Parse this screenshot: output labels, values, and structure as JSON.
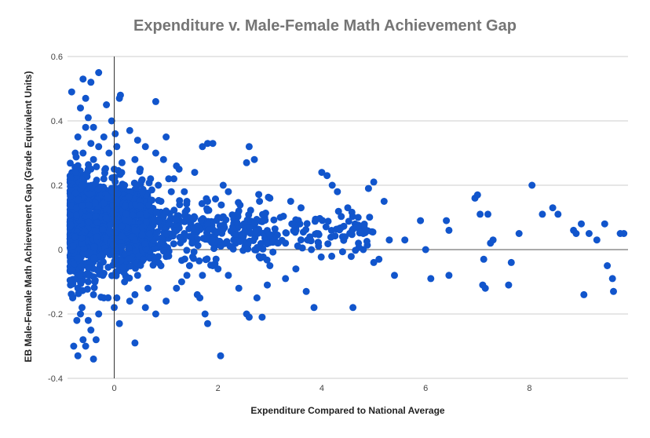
{
  "chart_data": {
    "type": "scatter",
    "title": "Expenditure v. Male-Female Math Achievement Gap",
    "xlabel": "Expenditure Compared to National Average",
    "ylabel": "EB Male-Female Math Achievement Gap (Grade Equivalent Units)",
    "xlim": [
      -0.9,
      9.9
    ],
    "ylim": [
      -0.4,
      0.6
    ],
    "x_ticks": [
      0,
      2,
      4,
      6,
      8
    ],
    "y_ticks": [
      -0.4,
      -0.2,
      0,
      0.2,
      0.4,
      0.6
    ],
    "x_tick_labels": [
      "0",
      "2",
      "4",
      "6",
      "8"
    ],
    "y_tick_labels": [
      "-0.4",
      "-0.2",
      "0",
      "0.2",
      "0.4",
      "0.6"
    ],
    "grid": "horizontal",
    "marker_color": "#1155cc",
    "series": [
      {
        "points": [
          [
            -0.85,
            0.21
          ],
          [
            -0.8,
            0.1
          ],
          [
            -0.78,
            -0.05
          ],
          [
            -0.75,
            0.3
          ],
          [
            -0.72,
            0.18
          ],
          [
            -0.7,
            -0.12
          ],
          [
            -0.68,
            0.05
          ],
          [
            -0.82,
            0.49
          ],
          [
            -0.6,
            0.53
          ],
          [
            -0.55,
            0.47
          ],
          [
            -0.45,
            0.52
          ],
          [
            -0.3,
            0.55
          ],
          [
            -0.5,
            0.41
          ],
          [
            -0.65,
            0.44
          ],
          [
            -0.4,
            0.38
          ],
          [
            -0.2,
            0.35
          ],
          [
            -0.15,
            0.45
          ],
          [
            -0.05,
            0.4
          ],
          [
            0.12,
            0.48
          ],
          [
            0.1,
            0.47
          ],
          [
            0.02,
            0.36
          ],
          [
            -0.6,
            -0.28
          ],
          [
            -0.7,
            -0.33
          ],
          [
            -0.55,
            -0.3
          ],
          [
            -0.4,
            -0.34
          ],
          [
            -0.45,
            -0.25
          ],
          [
            -0.5,
            -0.22
          ],
          [
            -0.65,
            -0.2
          ],
          [
            -0.78,
            -0.3
          ],
          [
            -0.35,
            -0.28
          ],
          [
            -0.3,
            -0.2
          ],
          [
            -0.2,
            -0.15
          ],
          [
            0.0,
            -0.18
          ],
          [
            0.1,
            -0.23
          ],
          [
            0.05,
            -0.15
          ],
          [
            0.4,
            -0.29
          ],
          [
            0.3,
            -0.16
          ],
          [
            0.2,
            -0.1
          ],
          [
            -0.6,
            0.3
          ],
          [
            -0.5,
            0.25
          ],
          [
            -0.4,
            0.28
          ],
          [
            -0.3,
            0.32
          ],
          [
            -0.2,
            0.22
          ],
          [
            -0.1,
            0.3
          ],
          [
            0.0,
            0.25
          ],
          [
            0.05,
            0.32
          ],
          [
            -0.75,
            0.12
          ],
          [
            -0.6,
            0.15
          ],
          [
            -0.5,
            0.08
          ],
          [
            -0.4,
            0.02
          ],
          [
            -0.3,
            -0.02
          ],
          [
            -0.2,
            0.05
          ],
          [
            -0.1,
            0.12
          ],
          [
            -0.6,
            -0.08
          ],
          [
            -0.5,
            -0.1
          ],
          [
            -0.4,
            -0.14
          ],
          [
            -0.7,
            0.35
          ],
          [
            -0.55,
            0.38
          ],
          [
            -0.45,
            0.33
          ],
          [
            -0.35,
            0.2
          ],
          [
            -0.25,
            0.15
          ],
          [
            -0.15,
            0.08
          ],
          [
            -0.05,
            0.18
          ],
          [
            -0.8,
            -0.15
          ],
          [
            -0.72,
            -0.22
          ],
          [
            -0.62,
            -0.18
          ],
          [
            -0.52,
            -0.05
          ],
          [
            -0.42,
            0.0
          ],
          [
            -0.32,
            0.1
          ],
          [
            -0.22,
            -0.08
          ],
          [
            0.2,
            0.2
          ],
          [
            0.3,
            0.15
          ],
          [
            0.4,
            0.28
          ],
          [
            0.5,
            0.1
          ],
          [
            0.6,
            0.05
          ],
          [
            0.7,
            0.22
          ],
          [
            0.8,
            0.3
          ],
          [
            0.9,
            -0.05
          ],
          [
            1.0,
            0.12
          ],
          [
            1.1,
            0.18
          ],
          [
            1.2,
            0.08
          ],
          [
            1.3,
            -0.1
          ],
          [
            1.4,
            0.15
          ],
          [
            1.5,
            0.02
          ],
          [
            0.25,
            -0.05
          ],
          [
            0.35,
            0.05
          ],
          [
            0.45,
            -0.08
          ],
          [
            0.55,
            0.18
          ],
          [
            0.65,
            -0.12
          ],
          [
            0.75,
            0.1
          ],
          [
            0.85,
            0.2
          ],
          [
            0.95,
            0.28
          ],
          [
            1.05,
            -0.02
          ],
          [
            1.15,
            0.22
          ],
          [
            1.25,
            0.25
          ],
          [
            1.35,
            0.05
          ],
          [
            1.45,
            -0.05
          ],
          [
            1.55,
            0.1
          ],
          [
            0.3,
            0.37
          ],
          [
            0.45,
            0.34
          ],
          [
            0.6,
            0.32
          ],
          [
            0.8,
            0.46
          ],
          [
            1.0,
            0.35
          ],
          [
            1.6,
            0.06
          ],
          [
            1.7,
            -0.08
          ],
          [
            0.4,
            -0.14
          ],
          [
            0.6,
            -0.18
          ],
          [
            0.8,
            -0.2
          ],
          [
            1.0,
            -0.16
          ],
          [
            1.2,
            -0.12
          ],
          [
            1.4,
            -0.08
          ],
          [
            1.6,
            -0.14
          ],
          [
            1.8,
            0.15
          ],
          [
            1.9,
            -0.05
          ],
          [
            2.0,
            0.1
          ],
          [
            2.1,
            0.2
          ],
          [
            2.2,
            -0.08
          ],
          [
            2.3,
            0.05
          ],
          [
            2.4,
            0.12
          ],
          [
            1.7,
            0.32
          ],
          [
            1.8,
            0.33
          ],
          [
            1.9,
            0.33
          ],
          [
            1.75,
            -0.2
          ],
          [
            1.8,
            -0.23
          ],
          [
            2.05,
            -0.33
          ],
          [
            2.5,
            0.08
          ],
          [
            2.6,
            0.32
          ],
          [
            2.7,
            0.28
          ],
          [
            2.55,
            0.27
          ],
          [
            2.55,
            -0.2
          ],
          [
            2.6,
            -0.21
          ],
          [
            2.85,
            -0.21
          ],
          [
            2.8,
            0.15
          ],
          [
            2.9,
            0.1
          ],
          [
            3.0,
            -0.05
          ],
          [
            3.1,
            0.05
          ],
          [
            3.2,
            0.1
          ],
          [
            3.3,
            0.02
          ],
          [
            3.4,
            0.15
          ],
          [
            3.5,
            0.07
          ],
          [
            3.6,
            0.13
          ],
          [
            3.7,
            -0.13
          ],
          [
            3.8,
            0.0
          ],
          [
            3.9,
            0.05
          ],
          [
            4.0,
            0.24
          ],
          [
            4.1,
            0.23
          ],
          [
            4.2,
            0.2
          ],
          [
            4.3,
            0.18
          ],
          [
            4.4,
            0.04
          ],
          [
            4.5,
            0.13
          ],
          [
            4.6,
            -0.18
          ],
          [
            4.7,
            0.1
          ],
          [
            4.8,
            0.0
          ],
          [
            4.9,
            0.19
          ],
          [
            5.0,
            0.21
          ],
          [
            5.1,
            -0.03
          ],
          [
            5.2,
            0.15
          ],
          [
            5.3,
            0.03
          ],
          [
            5.4,
            -0.08
          ],
          [
            5.6,
            0.03
          ],
          [
            5.9,
            0.09
          ],
          [
            6.0,
            0.0
          ],
          [
            6.1,
            -0.09
          ],
          [
            6.4,
            0.09
          ],
          [
            6.45,
            -0.08
          ],
          [
            6.95,
            0.16
          ],
          [
            7.0,
            0.17
          ],
          [
            7.05,
            0.11
          ],
          [
            7.1,
            -0.11
          ],
          [
            7.15,
            -0.12
          ],
          [
            7.2,
            0.11
          ],
          [
            7.25,
            0.02
          ],
          [
            7.3,
            0.03
          ],
          [
            7.6,
            -0.11
          ],
          [
            7.65,
            -0.04
          ],
          [
            7.8,
            0.05
          ],
          [
            8.05,
            0.2
          ],
          [
            8.25,
            0.11
          ],
          [
            8.45,
            0.13
          ],
          [
            8.55,
            0.11
          ],
          [
            8.85,
            0.06
          ],
          [
            8.9,
            0.05
          ],
          [
            9.0,
            0.08
          ],
          [
            9.05,
            -0.14
          ],
          [
            9.15,
            0.05
          ],
          [
            9.3,
            0.03
          ],
          [
            9.45,
            0.08
          ],
          [
            9.5,
            -0.05
          ],
          [
            9.6,
            -0.09
          ],
          [
            9.62,
            -0.13
          ],
          [
            9.75,
            0.05
          ],
          [
            9.82,
            0.05
          ],
          [
            7.12,
            -0.03
          ],
          [
            6.45,
            0.06
          ],
          [
            5.0,
            -0.04
          ],
          [
            4.8,
            0.05
          ],
          [
            3.85,
            -0.18
          ],
          [
            3.5,
            -0.06
          ],
          [
            3.3,
            -0.09
          ],
          [
            3.0,
            0.16
          ],
          [
            2.95,
            -0.11
          ],
          [
            2.75,
            -0.15
          ],
          [
            2.4,
            -0.12
          ],
          [
            2.2,
            0.18
          ],
          [
            2.0,
            -0.06
          ],
          [
            1.9,
            0.02
          ],
          [
            1.65,
            -0.15
          ],
          [
            1.55,
            0.24
          ],
          [
            1.35,
            0.18
          ],
          [
            1.2,
            0.26
          ],
          [
            1.05,
            0.22
          ],
          [
            0.9,
            0.15
          ],
          [
            0.7,
            0.05
          ],
          [
            0.5,
            0.25
          ],
          [
            0.35,
            0.18
          ],
          [
            0.15,
            0.27
          ],
          [
            0.0,
            0.1
          ]
        ]
      }
    ]
  }
}
